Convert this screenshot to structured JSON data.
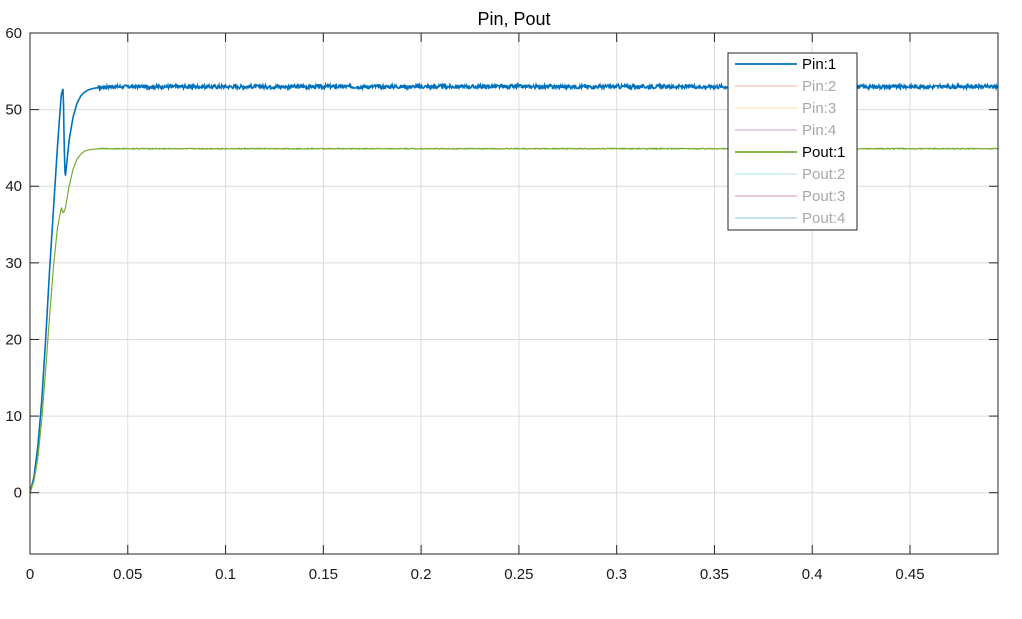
{
  "chart_data": {
    "type": "line",
    "title": "Pin, Pout",
    "xlabel": "",
    "ylabel": "",
    "xlim": [
      0,
      0.495
    ],
    "ylim": [
      -8,
      60
    ],
    "x_ticks": [
      0,
      0.05,
      0.1,
      0.15,
      0.2,
      0.25,
      0.3,
      0.35,
      0.4,
      0.45
    ],
    "x_tick_labels": [
      "0",
      "0.05",
      "0.1",
      "0.15",
      "0.2",
      "0.25",
      "0.3",
      "0.35",
      "0.4",
      "0.45"
    ],
    "y_ticks": [
      0,
      10,
      20,
      30,
      40,
      50,
      60
    ],
    "y_tick_labels": [
      "0",
      "10",
      "20",
      "30",
      "40",
      "50",
      "60"
    ],
    "grid": true,
    "legend_position": "top-right",
    "series": [
      {
        "name": "Pin:1",
        "color": "#0072bd",
        "active": true,
        "noise": 0.25,
        "x": [
          0,
          0.002,
          0.004,
          0.006,
          0.008,
          0.01,
          0.012,
          0.014,
          0.016,
          0.017,
          0.0175,
          0.018,
          0.019,
          0.02,
          0.022,
          0.024,
          0.026,
          0.028,
          0.03,
          0.033,
          0.036,
          0.04,
          0.045,
          0.05,
          0.1,
          0.2,
          0.3,
          0.4,
          0.495
        ],
        "y": [
          0,
          2,
          6,
          12,
          20,
          29,
          37,
          45,
          52,
          52.8,
          45,
          41,
          43.5,
          46,
          49,
          50.8,
          51.8,
          52.3,
          52.6,
          52.8,
          52.9,
          53,
          53,
          53,
          53,
          53,
          53,
          53,
          53
        ]
      },
      {
        "name": "Pin:2",
        "color": "#d95319",
        "active": false,
        "x": [],
        "y": []
      },
      {
        "name": "Pin:3",
        "color": "#edb120",
        "active": false,
        "x": [],
        "y": []
      },
      {
        "name": "Pin:4",
        "color": "#7e2f8e",
        "active": false,
        "x": [],
        "y": []
      },
      {
        "name": "Pout:1",
        "color": "#77ac30",
        "active": true,
        "noise": 0.06,
        "x": [
          0,
          0.002,
          0.004,
          0.006,
          0.008,
          0.01,
          0.012,
          0.014,
          0.016,
          0.017,
          0.018,
          0.019,
          0.02,
          0.022,
          0.024,
          0.026,
          0.028,
          0.03,
          0.033,
          0.036,
          0.04,
          0.045,
          0.05,
          0.1,
          0.2,
          0.3,
          0.4,
          0.495
        ],
        "y": [
          0,
          1.5,
          4.5,
          9.5,
          16,
          23,
          29.5,
          34.5,
          37.2,
          36.5,
          37,
          38.5,
          40,
          42.2,
          43.5,
          44.2,
          44.6,
          44.75,
          44.85,
          44.9,
          44.9,
          44.9,
          44.9,
          44.9,
          44.9,
          44.9,
          44.9,
          44.9
        ]
      },
      {
        "name": "Pout:2",
        "color": "#4dbeee",
        "active": false,
        "x": [],
        "y": []
      },
      {
        "name": "Pout:3",
        "color": "#a2142f",
        "active": false,
        "x": [],
        "y": []
      },
      {
        "name": "Pout:4",
        "color": "#0072bd",
        "active": false,
        "x": [],
        "y": []
      }
    ]
  }
}
